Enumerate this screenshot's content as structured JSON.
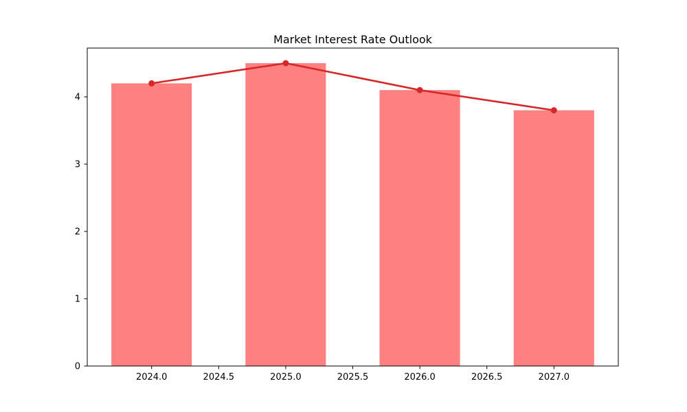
{
  "figure": {
    "title": "Market Interest Rate Outlook"
  },
  "colors": {
    "background": "#ffffff",
    "bar_fill": "#ff8080",
    "line": "#d62728",
    "marker": "#d62728",
    "axis": "#000000",
    "text": "#000000"
  },
  "chart_data": {
    "type": "bar",
    "overlay": "line",
    "title": "Market Interest Rate Outlook",
    "xlabel": "",
    "ylabel": "",
    "x": [
      2024,
      2025,
      2026,
      2027
    ],
    "categories": [
      "2024",
      "2025",
      "2026",
      "2027"
    ],
    "series": [
      {
        "name": "interest-rate-bars",
        "type": "bar",
        "values": [
          4.2,
          4.5,
          4.1,
          3.8
        ]
      },
      {
        "name": "interest-rate-trend",
        "type": "line",
        "marker": "circle",
        "values": [
          4.2,
          4.5,
          4.1,
          3.8
        ]
      }
    ],
    "bar_width": 0.6,
    "xlim": [
      2023.52,
      2027.48
    ],
    "ylim": [
      0,
      4.725
    ],
    "xticks": [
      {
        "value": 2024.0,
        "label": "2024.0"
      },
      {
        "value": 2024.5,
        "label": "2024.5"
      },
      {
        "value": 2025.0,
        "label": "2025.0"
      },
      {
        "value": 2025.5,
        "label": "2025.5"
      },
      {
        "value": 2026.0,
        "label": "2026.0"
      },
      {
        "value": 2026.5,
        "label": "2026.5"
      },
      {
        "value": 2027.0,
        "label": "2027.0"
      }
    ],
    "yticks": [
      {
        "value": 0,
        "label": "0"
      },
      {
        "value": 1,
        "label": "1"
      },
      {
        "value": 2,
        "label": "2"
      },
      {
        "value": 3,
        "label": "3"
      },
      {
        "value": 4,
        "label": "4"
      }
    ],
    "grid": false,
    "legend": null
  }
}
